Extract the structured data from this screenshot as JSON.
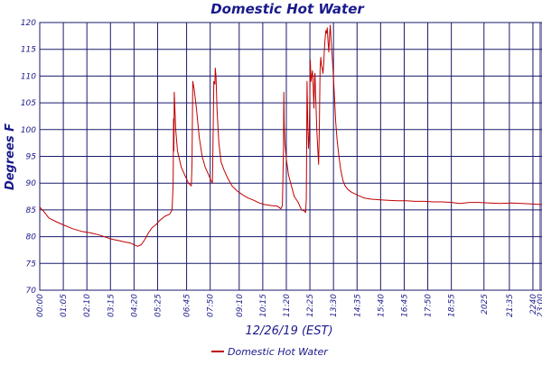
{
  "chart_data": {
    "type": "line",
    "title": "Domestic Hot Water",
    "xlabel": "12/26/19 (EST)",
    "ylabel": "Degrees F",
    "ylim": [
      70,
      120
    ],
    "xlim_minutes": [
      0,
      1385
    ],
    "yticks": [
      70,
      75,
      80,
      85,
      90,
      95,
      100,
      105,
      110,
      115,
      120
    ],
    "xticks": [
      {
        "label": "00:00",
        "minutes": 0
      },
      {
        "label": "01:05",
        "minutes": 65
      },
      {
        "label": "02:10",
        "minutes": 130
      },
      {
        "label": "03:15",
        "minutes": 195
      },
      {
        "label": "04:20",
        "minutes": 260
      },
      {
        "label": "05:25",
        "minutes": 325
      },
      {
        "label": "06:45",
        "minutes": 405
      },
      {
        "label": "07:50",
        "minutes": 470
      },
      {
        "label": "09:10",
        "minutes": 550
      },
      {
        "label": "10:15",
        "minutes": 615
      },
      {
        "label": "11:20",
        "minutes": 680
      },
      {
        "label": "12:25",
        "minutes": 745
      },
      {
        "label": "13:30",
        "minutes": 810
      },
      {
        "label": "14:35",
        "minutes": 875
      },
      {
        "label": "15:40",
        "minutes": 940
      },
      {
        "label": "16:45",
        "minutes": 1005
      },
      {
        "label": "17:50",
        "minutes": 1070
      },
      {
        "label": "18:55",
        "minutes": 1135
      },
      {
        "label": "2025",
        "minutes": 1225
      },
      {
        "label": "21:35",
        "minutes": 1295
      },
      {
        "label": "2240",
        "minutes": 1360
      },
      {
        "label": "23:00",
        "minutes": 1380
      }
    ],
    "grid": true,
    "legend_position": "bottom",
    "series": [
      {
        "name": "Domestic Hot Water",
        "color": "#c00000",
        "points": [
          [
            0,
            85.5
          ],
          [
            10,
            84.8
          ],
          [
            25,
            83.5
          ],
          [
            45,
            82.8
          ],
          [
            65,
            82.2
          ],
          [
            90,
            81.5
          ],
          [
            115,
            81.0
          ],
          [
            140,
            80.7
          ],
          [
            165,
            80.3
          ],
          [
            195,
            79.6
          ],
          [
            215,
            79.3
          ],
          [
            235,
            79.0
          ],
          [
            250,
            78.8
          ],
          [
            260,
            78.5
          ],
          [
            270,
            78.2
          ],
          [
            280,
            78.5
          ],
          [
            290,
            79.5
          ],
          [
            300,
            80.7
          ],
          [
            310,
            81.7
          ],
          [
            320,
            82.2
          ],
          [
            330,
            83.0
          ],
          [
            345,
            83.8
          ],
          [
            358,
            84.2
          ],
          [
            365,
            85.0
          ],
          [
            368,
            90.0
          ],
          [
            369,
            102.0
          ],
          [
            370,
            96.0
          ],
          [
            371,
            107.0
          ],
          [
            375,
            100.0
          ],
          [
            380,
            96.0
          ],
          [
            390,
            93.0
          ],
          [
            400,
            91.5
          ],
          [
            410,
            90.0
          ],
          [
            418,
            89.5
          ],
          [
            420,
            94.0
          ],
          [
            421,
            102.0
          ],
          [
            422,
            109.0
          ],
          [
            426,
            107.5
          ],
          [
            432,
            104.0
          ],
          [
            440,
            98.5
          ],
          [
            448,
            95.0
          ],
          [
            456,
            93.0
          ],
          [
            466,
            91.5
          ],
          [
            472,
            90.5
          ],
          [
            476,
            90.0
          ],
          [
            477,
            93.5
          ],
          [
            480,
            109.0
          ],
          [
            483,
            108.5
          ],
          [
            484,
            111.5
          ],
          [
            486,
            110.0
          ],
          [
            489,
            103.5
          ],
          [
            494,
            97.5
          ],
          [
            500,
            94.0
          ],
          [
            508,
            92.5
          ],
          [
            518,
            91.0
          ],
          [
            530,
            89.5
          ],
          [
            545,
            88.5
          ],
          [
            560,
            87.8
          ],
          [
            575,
            87.2
          ],
          [
            590,
            86.8
          ],
          [
            605,
            86.3
          ],
          [
            620,
            86.0
          ],
          [
            640,
            85.8
          ],
          [
            655,
            85.7
          ],
          [
            665,
            85.2
          ],
          [
            669,
            85.8
          ],
          [
            672,
            96.0
          ],
          [
            673,
            107.0
          ],
          [
            674,
            101.0
          ],
          [
            676,
            97.5
          ],
          [
            680,
            94.5
          ],
          [
            686,
            91.5
          ],
          [
            694,
            89.5
          ],
          [
            702,
            87.5
          ],
          [
            712,
            86.5
          ],
          [
            722,
            85.0
          ],
          [
            730,
            84.8
          ],
          [
            733,
            84.5
          ],
          [
            735,
            87.0
          ],
          [
            737,
            109.0
          ],
          [
            739,
            101.0
          ],
          [
            741,
            96.5
          ],
          [
            743,
            99.0
          ],
          [
            744,
            103.0
          ],
          [
            746,
            113.0
          ],
          [
            748,
            109.0
          ],
          [
            750,
            110.0
          ],
          [
            752,
            111.0
          ],
          [
            754,
            108.0
          ],
          [
            756,
            104.0
          ],
          [
            758,
            110.0
          ],
          [
            759,
            110.5
          ],
          [
            761,
            106.0
          ],
          [
            764,
            100.0
          ],
          [
            767,
            96.0
          ],
          [
            769,
            93.5
          ],
          [
            771,
            100.0
          ],
          [
            773,
            111.0
          ],
          [
            775,
            113.5
          ],
          [
            777,
            112.0
          ],
          [
            779,
            111.5
          ],
          [
            781,
            110.5
          ],
          [
            783,
            112.0
          ],
          [
            785,
            115.0
          ],
          [
            787,
            117.0
          ],
          [
            789,
            118.5
          ],
          [
            791,
            118.0
          ],
          [
            793,
            119.0
          ],
          [
            795,
            116.5
          ],
          [
            797,
            114.5
          ],
          [
            799,
            117.5
          ],
          [
            801,
            119.5
          ],
          [
            803,
            117.0
          ],
          [
            805,
            115.0
          ],
          [
            808,
            112.0
          ],
          [
            812,
            107.0
          ],
          [
            816,
            101.5
          ],
          [
            820,
            98.0
          ],
          [
            825,
            95.0
          ],
          [
            830,
            92.5
          ],
          [
            836,
            90.5
          ],
          [
            842,
            89.5
          ],
          [
            850,
            88.8
          ],
          [
            860,
            88.3
          ],
          [
            875,
            87.8
          ],
          [
            895,
            87.2
          ],
          [
            915,
            87.0
          ],
          [
            935,
            86.9
          ],
          [
            960,
            86.8
          ],
          [
            985,
            86.7
          ],
          [
            1010,
            86.7
          ],
          [
            1035,
            86.6
          ],
          [
            1060,
            86.6
          ],
          [
            1085,
            86.5
          ],
          [
            1110,
            86.5
          ],
          [
            1135,
            86.4
          ],
          [
            1160,
            86.2
          ],
          [
            1185,
            86.4
          ],
          [
            1210,
            86.4
          ],
          [
            1240,
            86.3
          ],
          [
            1270,
            86.2
          ],
          [
            1300,
            86.3
          ],
          [
            1330,
            86.2
          ],
          [
            1360,
            86.1
          ],
          [
            1385,
            86.0
          ]
        ]
      }
    ]
  }
}
